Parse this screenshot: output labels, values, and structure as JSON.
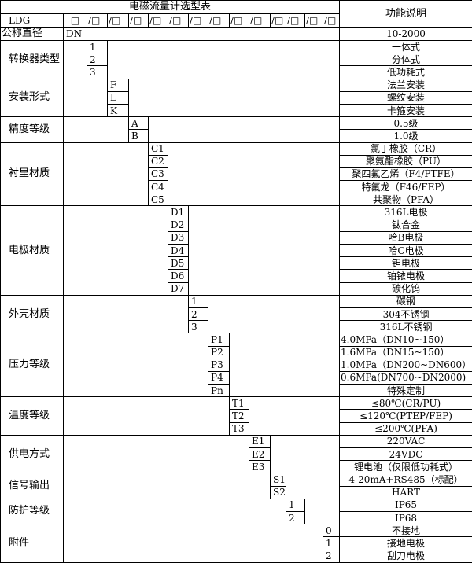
{
  "header": {
    "title": "电磁流量计选型表",
    "function_header": "功能说明",
    "code_prefix": "LDG",
    "first_box": "□",
    "slots": [
      "/□",
      "/□",
      "/□",
      "/□",
      "/□",
      "/□",
      "/□",
      "/□",
      "/□",
      "/□",
      "/□",
      "/□",
      "/□"
    ]
  },
  "nominal": {
    "label": "公称直径",
    "code": "DN",
    "function": "10-2000"
  },
  "sections": [
    {
      "label": "转换器类型",
      "col": 2,
      "options": [
        {
          "code": "1",
          "function": "一体式"
        },
        {
          "code": "2",
          "function": "分体式"
        },
        {
          "code": "3",
          "function": "低功耗式"
        }
      ]
    },
    {
      "label": "安装形式",
      "col": 3,
      "options": [
        {
          "code": "F",
          "function": "法兰安装"
        },
        {
          "code": "L",
          "function": "螺纹安装"
        },
        {
          "code": "K",
          "function": "卡箍安装"
        }
      ]
    },
    {
      "label": "精度等级",
      "col": 4,
      "options": [
        {
          "code": "A",
          "function": "0.5级"
        },
        {
          "code": "B",
          "function": "1.0级"
        }
      ]
    },
    {
      "label": "衬里材质",
      "col": 5,
      "options": [
        {
          "code": "C1",
          "function": "氯丁橡胶（CR）"
        },
        {
          "code": "C2",
          "function": "聚氨酯橡胶（PU）"
        },
        {
          "code": "C3",
          "function": "聚四氟乙烯（F4/PTFE）"
        },
        {
          "code": "C4",
          "function": "特氟龙（F46/FEP）"
        },
        {
          "code": "C5",
          "function": "共聚物（PFA）"
        }
      ]
    },
    {
      "label": "电极材质",
      "col": 6,
      "options": [
        {
          "code": "D1",
          "function": "316L电极"
        },
        {
          "code": "D2",
          "function": "钛合金"
        },
        {
          "code": "D3",
          "function": "哈B电极"
        },
        {
          "code": "D4",
          "function": "哈C电极"
        },
        {
          "code": "D5",
          "function": "钽电极"
        },
        {
          "code": "D6",
          "function": "铂铱电极"
        },
        {
          "code": "D7",
          "function": "碳化钨"
        }
      ]
    },
    {
      "label": "外壳材质",
      "col": 7,
      "options": [
        {
          "code": "1",
          "function": "碳钢"
        },
        {
          "code": "2",
          "function": "304不锈钢"
        },
        {
          "code": "3",
          "function": "316L不锈钢"
        }
      ]
    },
    {
      "label": "压力等级",
      "col": 8,
      "options": [
        {
          "code": "P1",
          "function": "4.0MPa（DN10~150）",
          "align": "left"
        },
        {
          "code": "P2",
          "function": "1.6MPa（DN15~150）",
          "align": "left"
        },
        {
          "code": "P3",
          "function": "1.0MPa（DN200~DN600）",
          "align": "left"
        },
        {
          "code": "P4",
          "function": "0.6MPa(DN700~DN2000)",
          "align": "left"
        },
        {
          "code": "Pn",
          "function": "特殊定制"
        }
      ]
    },
    {
      "label": "温度等级",
      "col": 9,
      "options": [
        {
          "code": "T1",
          "function": "≤80℃(CR/PU)"
        },
        {
          "code": "T2",
          "function": "≤120℃(PTEP/FEP)"
        },
        {
          "code": "T3",
          "function": "≤200℃(PFA)"
        }
      ]
    },
    {
      "label": "供电方式",
      "col": 10,
      "options": [
        {
          "code": "E1",
          "function": "220VAC"
        },
        {
          "code": "E2",
          "function": "24VDC"
        },
        {
          "code": "E3",
          "function": "锂电池（仅限低功耗式）"
        }
      ]
    },
    {
      "label": "信号输出",
      "col": 11,
      "options": [
        {
          "code": "S1",
          "function": "4-20mA+RS485（标配）"
        },
        {
          "code": "S2",
          "function": "HART"
        }
      ]
    },
    {
      "label": "防护等级",
      "col": 12,
      "options": [
        {
          "code": "1",
          "function": "IP65"
        },
        {
          "code": "2",
          "function": "IP68"
        }
      ]
    },
    {
      "label": "附件",
      "col": 14,
      "options": [
        {
          "code": "0",
          "function": "不接地"
        },
        {
          "code": "1",
          "function": "接地电极"
        },
        {
          "code": "2",
          "function": "刮刀电极"
        }
      ]
    }
  ]
}
